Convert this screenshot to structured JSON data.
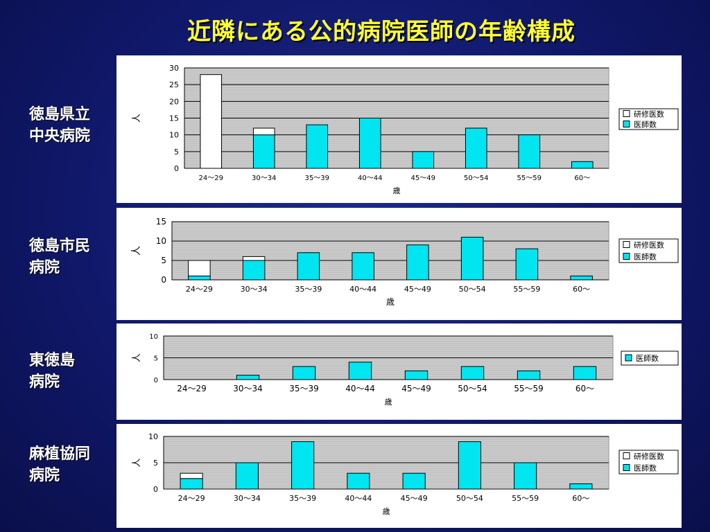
{
  "title": "近隣にある公的病院医師の年齢構成",
  "hospitals": [
    {
      "line1": "徳島県立",
      "line2": "中央病院"
    },
    {
      "line1": "徳島市民",
      "line2": "病院"
    },
    {
      "line1": "東徳島",
      "line2": "病院"
    },
    {
      "line1": "麻植協同",
      "line2": "病院"
    }
  ],
  "colors": {
    "resident": "#ffffff",
    "doctor": "#00e5f0",
    "plot_bg": "#c0c0c0",
    "grid": "#000000"
  },
  "chart_data": [
    {
      "type": "bar",
      "stacked": true,
      "categories": [
        "24～29",
        "30～34",
        "35～39",
        "40～44",
        "45～49",
        "50～54",
        "55～59",
        "60～"
      ],
      "series": [
        {
          "name": "医師数",
          "values": [
            0,
            10,
            13,
            15,
            5,
            12,
            10,
            2
          ]
        },
        {
          "name": "研修医数",
          "values": [
            28,
            2,
            0,
            0,
            0,
            0,
            0,
            0
          ]
        }
      ],
      "xlabel": "歳",
      "ylabel": "人",
      "ylim": [
        0,
        30
      ],
      "yticks": [
        "0",
        "5",
        "10",
        "15",
        "20",
        "25",
        "30"
      ],
      "legend": "right",
      "grid": true
    },
    {
      "type": "bar",
      "stacked": true,
      "categories": [
        "24～29",
        "30～34",
        "35～39",
        "40～44",
        "45～49",
        "50～54",
        "55～59",
        "60～"
      ],
      "series": [
        {
          "name": "医師数",
          "values": [
            1,
            5,
            7,
            7,
            9,
            11,
            8,
            1
          ]
        },
        {
          "name": "研修医数",
          "values": [
            4,
            1,
            0,
            0,
            0,
            0,
            0,
            0
          ]
        }
      ],
      "xlabel": "歳",
      "ylabel": "人",
      "ylim": [
        0,
        15
      ],
      "yticks": [
        "0",
        "5",
        "10",
        "15"
      ],
      "legend": "right",
      "grid": true
    },
    {
      "type": "bar",
      "stacked": false,
      "categories": [
        "24～29",
        "30～34",
        "35～39",
        "40～44",
        "45～49",
        "50～54",
        "55～59",
        "60～"
      ],
      "series": [
        {
          "name": "医師数",
          "values": [
            0,
            1,
            3,
            4,
            2,
            3,
            2,
            3
          ]
        }
      ],
      "xlabel": "歳",
      "ylabel": "人",
      "ylim": [
        0,
        10
      ],
      "yticks": [
        "0",
        "5",
        "10"
      ],
      "legend": "right",
      "grid": true
    },
    {
      "type": "bar",
      "stacked": true,
      "categories": [
        "24～29",
        "30～34",
        "35～39",
        "40～44",
        "45～49",
        "50～54",
        "55～59",
        "60～"
      ],
      "series": [
        {
          "name": "医師数",
          "values": [
            2,
            5,
            9,
            3,
            3,
            9,
            5,
            1
          ]
        },
        {
          "name": "研修医数",
          "values": [
            1,
            0,
            0,
            0,
            0,
            0,
            0,
            0
          ]
        }
      ],
      "xlabel": "歳",
      "ylabel": "人",
      "ylim": [
        0,
        10
      ],
      "yticks": [
        "0",
        "5",
        "10"
      ],
      "legend": "right",
      "grid": true
    }
  ]
}
